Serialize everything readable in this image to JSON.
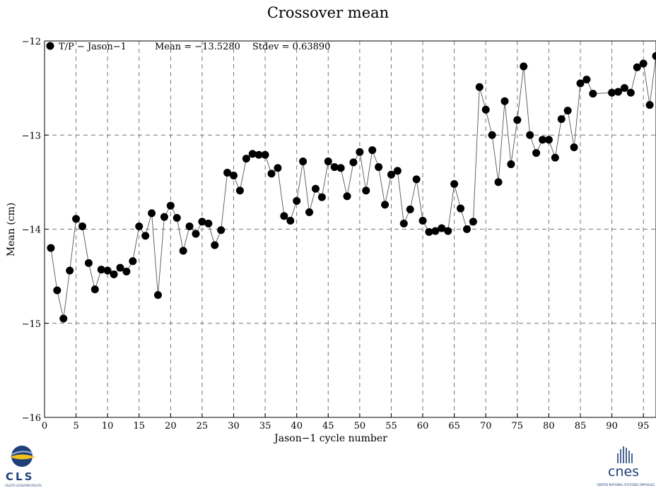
{
  "chart_data": {
    "type": "line",
    "title": "Crossover mean",
    "xlabel": "Jason−1 cycle number",
    "ylabel": "Mean (cm)",
    "xlim": [
      0,
      97
    ],
    "ylim": [
      -16,
      -12
    ],
    "xticks": [
      0,
      5,
      10,
      15,
      20,
      25,
      30,
      35,
      40,
      45,
      50,
      55,
      60,
      65,
      70,
      75,
      80,
      85,
      90,
      95
    ],
    "yticks": [
      -16,
      -15,
      -14,
      -13,
      -12
    ],
    "grid": true,
    "legend_position": "top-left",
    "legend_text": "T/P − Jason−1",
    "mean_text": "Mean = −13.5280",
    "stdev_text": "Stdev = 0.63890",
    "series": [
      {
        "name": "T/P − Jason−1",
        "marker": "filled-circle",
        "color": "#000000",
        "x": [
          1,
          2,
          3,
          4,
          5,
          6,
          7,
          8,
          9,
          10,
          11,
          12,
          13,
          14,
          15,
          16,
          17,
          18,
          19,
          20,
          21,
          22,
          23,
          24,
          25,
          26,
          27,
          28,
          29,
          30,
          31,
          32,
          33,
          34,
          35,
          36,
          37,
          38,
          39,
          40,
          41,
          42,
          43,
          44,
          45,
          46,
          47,
          48,
          49,
          50,
          51,
          52,
          53,
          54,
          55,
          56,
          57,
          58,
          59,
          60,
          61,
          62,
          63,
          64,
          65,
          66,
          67,
          68,
          69,
          70,
          71,
          72,
          73,
          74,
          75,
          76,
          77,
          78,
          79,
          80,
          81,
          82,
          83,
          84,
          85,
          86,
          87,
          90,
          91,
          92,
          93,
          94,
          95,
          96,
          97
        ],
        "values": [
          -14.2,
          -14.65,
          -14.95,
          -14.44,
          -13.89,
          -13.97,
          -14.36,
          -14.64,
          -14.43,
          -14.44,
          -14.48,
          -14.41,
          -14.45,
          -14.34,
          -13.97,
          -14.07,
          -13.83,
          -14.7,
          -13.87,
          -13.75,
          -13.88,
          -14.23,
          -13.97,
          -14.05,
          -13.92,
          -13.94,
          -14.17,
          -14.01,
          -13.4,
          -13.43,
          -13.59,
          -13.25,
          -13.2,
          -13.21,
          -13.21,
          -13.41,
          -13.35,
          -13.86,
          -13.91,
          -13.7,
          -13.28,
          -13.82,
          -13.57,
          -13.66,
          -13.28,
          -13.34,
          -13.35,
          -13.65,
          -13.29,
          -13.18,
          -13.59,
          -13.16,
          -13.34,
          -13.74,
          -13.42,
          -13.38,
          -13.94,
          -13.79,
          -13.47,
          -13.91,
          -14.03,
          -14.02,
          -13.99,
          -14.02,
          -13.52,
          -13.78,
          -14.0,
          -13.92,
          -12.49,
          -12.73,
          -13.0,
          -13.5,
          -12.64,
          -13.31,
          -12.84,
          -12.27,
          -13.0,
          -13.19,
          -13.05,
          -13.05,
          -13.24,
          -12.83,
          -12.74,
          -13.13,
          -12.45,
          -12.41,
          -12.56,
          -12.55,
          -12.54,
          -12.5,
          -12.55,
          -12.28,
          -12.24,
          -12.68,
          -12.16
        ]
      }
    ]
  },
  "logos": {
    "left_name": "CLS",
    "left_sub": "COLLECTE LOCALISATION SATELLITES",
    "right_name": "cnes",
    "right_sub": "CENTRE NATIONAL D'ETUDES SPATIALES"
  }
}
